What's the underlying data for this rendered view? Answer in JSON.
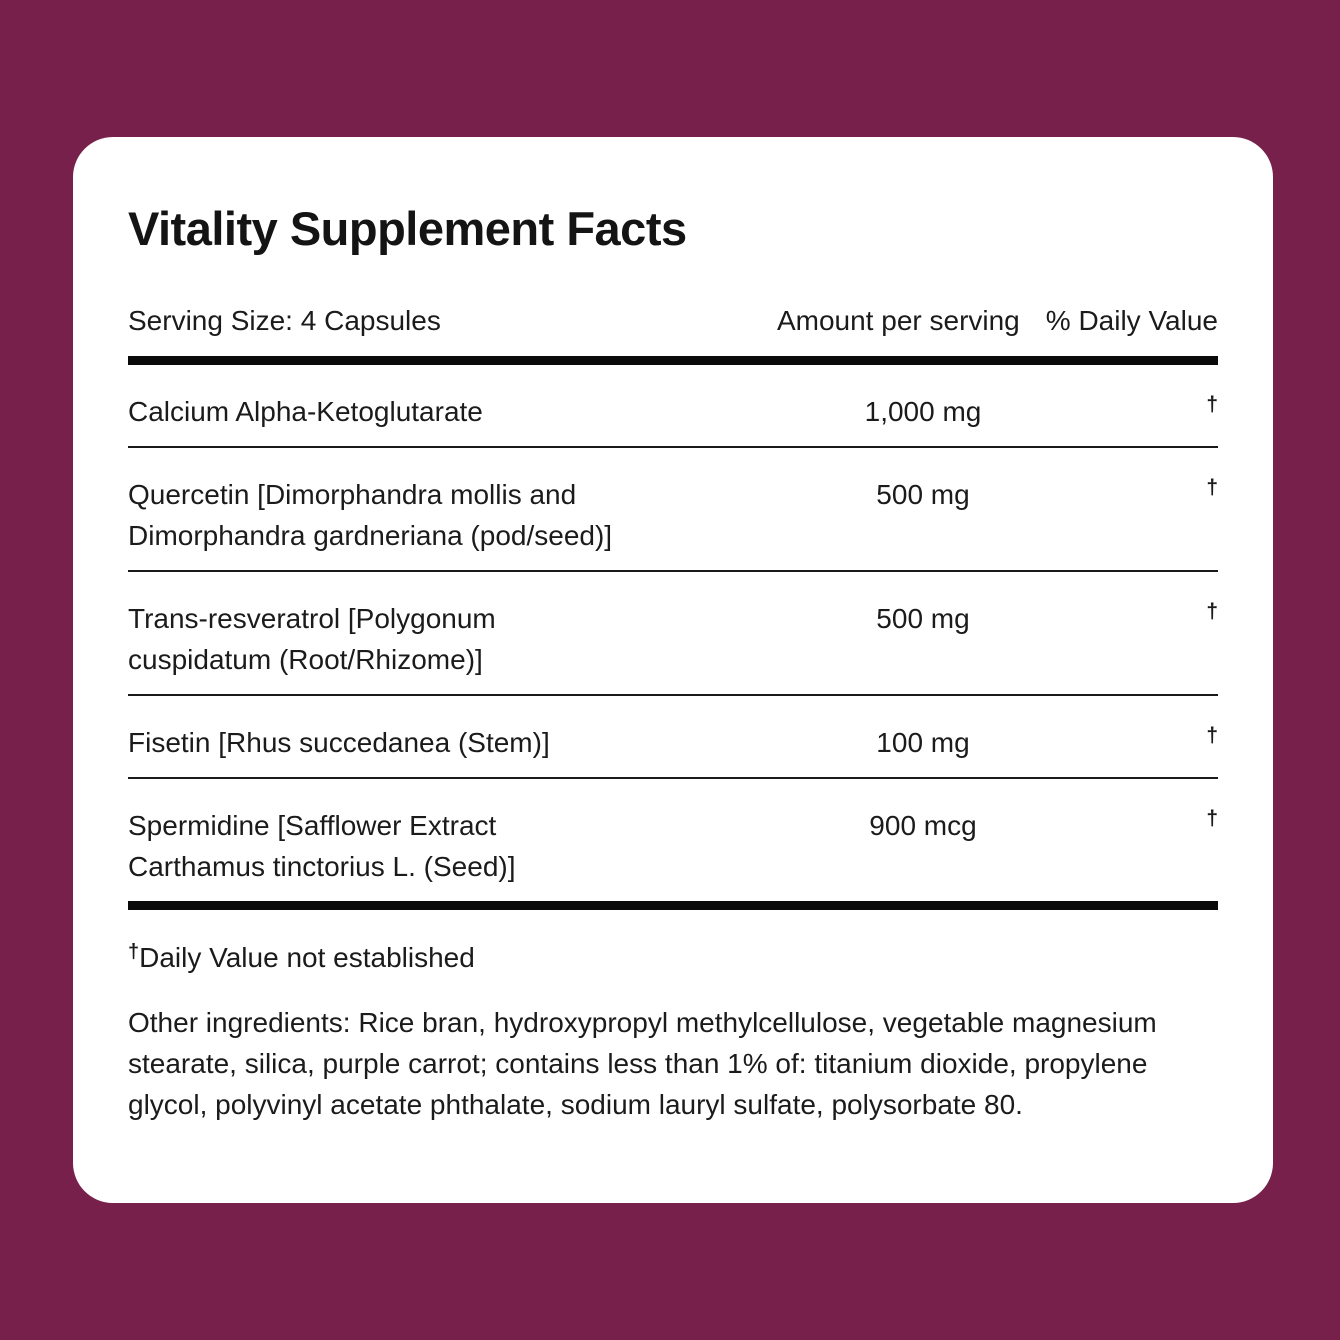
{
  "colors": {
    "background": "#76204B",
    "card": "#FFFFFF",
    "text": "#1B1B1B",
    "rule": "#0A0A0A"
  },
  "label": {
    "title": "Vitality Supplement Facts",
    "serving_size": "Serving Size: 4 Capsules",
    "columns": {
      "amount": "Amount per serving",
      "daily_value": "% Daily Value"
    },
    "rows": [
      {
        "name": "Calcium Alpha-Ketoglutarate",
        "amount": "1,000 mg",
        "daily_value": "†"
      },
      {
        "name": "Quercetin [Dimorphandra mollis and\nDimorphandra gardneriana (pod/seed)]",
        "amount": "500 mg",
        "daily_value": "†"
      },
      {
        "name": "Trans-resveratrol [Polygonum\ncuspidatum (Root/Rhizome)]",
        "amount": "500 mg",
        "daily_value": "†"
      },
      {
        "name": "Fisetin [Rhus succedanea (Stem)]",
        "amount": "100 mg",
        "daily_value": "†"
      },
      {
        "name": "Spermidine [Safflower Extract\nCarthamus tinctorius L. (Seed)]",
        "amount": "900 mcg",
        "daily_value": "†"
      }
    ],
    "footnote": {
      "symbol": "†",
      "text": "Daily Value not established"
    },
    "other_ingredients": "Other ingredients: Rice bran, hydroxypropyl methylcellulose, vegetable magnesium stearate, silica, purple carrot; contains less than 1% of: titanium dioxide, propylene glycol, polyvinyl acetate phthalate, sodium lauryl sulfate, polysorbate 80."
  }
}
